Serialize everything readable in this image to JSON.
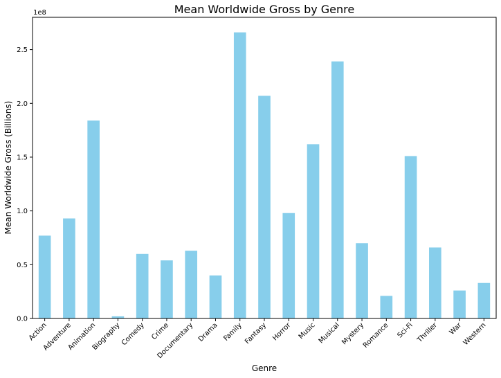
{
  "chart_data": {
    "type": "bar",
    "title": "Mean Worldwide Gross by Genre",
    "xlabel": "Genre",
    "ylabel": "Mean Worldwide Gross (Billions)",
    "offset_label": "1e8",
    "ylim": [
      0,
      2.8
    ],
    "yticks": [
      0.0,
      0.5,
      1.0,
      1.5,
      2.0,
      2.5
    ],
    "ytick_labels": [
      "0.0",
      "0.5",
      "1.0",
      "1.5",
      "2.0",
      "2.5"
    ],
    "bar_color": "#87ceeb",
    "grid": false,
    "categories": [
      "Action",
      "Adventure",
      "Animation",
      "Biography",
      "Comedy",
      "Crime",
      "Documentary",
      "Drama",
      "Family",
      "Fantasy",
      "Horror",
      "Music",
      "Musical",
      "Mystery",
      "Romance",
      "Sci-Fi",
      "Thriller",
      "War",
      "Western"
    ],
    "values": [
      0.77,
      0.93,
      1.84,
      0.02,
      0.6,
      0.54,
      0.63,
      0.4,
      2.66,
      2.07,
      0.98,
      1.62,
      2.39,
      0.7,
      0.21,
      1.51,
      0.66,
      0.26,
      0.33
    ]
  }
}
